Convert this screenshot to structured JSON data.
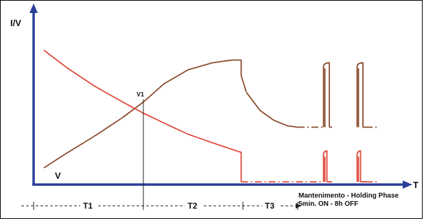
{
  "chart_data": {
    "type": "line",
    "title": "",
    "ylabel": "I/V",
    "xlabel": "T",
    "phases": [
      "T1",
      "T2",
      "T3"
    ],
    "phase_boundaries": [
      0,
      0.32,
      0.61,
      0.77
    ],
    "marker_label": "V1",
    "marker_t": 0.32,
    "holding_note_1": "Mantenimento - Holding Phase",
    "holding_note_2": "5min. ON - 8h OFF",
    "series": [
      {
        "name": "V",
        "color": "#8a4b2b",
        "points": [
          [
            0.03,
            0.11
          ],
          [
            0.1,
            0.22
          ],
          [
            0.18,
            0.34
          ],
          [
            0.26,
            0.47
          ],
          [
            0.32,
            0.58
          ],
          [
            0.38,
            0.71
          ],
          [
            0.45,
            0.81
          ],
          [
            0.52,
            0.86
          ],
          [
            0.58,
            0.88
          ],
          [
            0.605,
            0.88
          ],
          [
            0.605,
            0.77
          ],
          [
            0.62,
            0.65
          ],
          [
            0.66,
            0.52
          ],
          [
            0.7,
            0.45
          ],
          [
            0.74,
            0.41
          ],
          [
            0.77,
            0.4
          ]
        ],
        "holding_dash": [
          [
            0.77,
            0.4
          ],
          [
            0.845,
            0.4
          ]
        ],
        "pulses": [
          {
            "t_start": 0.845,
            "t_peak": 0.862,
            "t_end": 0.87,
            "level": 0.4,
            "peak": 0.86
          },
          {
            "t_start": 0.943,
            "t_peak": 0.96,
            "t_end": 0.968,
            "level": 0.4,
            "peak": 0.86
          }
        ],
        "tail": [
          [
            0.968,
            0.4
          ],
          [
            1.0,
            0.4
          ]
        ]
      },
      {
        "name": "I",
        "color": "#e0483a",
        "points": [
          [
            0.03,
            0.95
          ],
          [
            0.1,
            0.82
          ],
          [
            0.18,
            0.69
          ],
          [
            0.26,
            0.58
          ],
          [
            0.32,
            0.5
          ],
          [
            0.38,
            0.43
          ],
          [
            0.45,
            0.35
          ],
          [
            0.52,
            0.29
          ],
          [
            0.58,
            0.24
          ],
          [
            0.605,
            0.22
          ],
          [
            0.605,
            0.01
          ]
        ],
        "holding_dash": [
          [
            0.605,
            0.01
          ],
          [
            0.845,
            0.01
          ]
        ],
        "pulses": [
          {
            "t_start": 0.845,
            "t_peak": 0.855,
            "t_end": 0.87,
            "level": 0.01,
            "peak": 0.23
          },
          {
            "t_start": 0.943,
            "t_peak": 0.953,
            "t_end": 0.968,
            "level": 0.01,
            "peak": 0.23
          }
        ],
        "tail": [
          [
            0.968,
            0.01
          ],
          [
            1.0,
            0.01
          ]
        ]
      }
    ],
    "colors": {
      "axis": "#2b3f99",
      "frame": "#000000",
      "guide": "#222222"
    },
    "grid": false,
    "legend": "none"
  }
}
